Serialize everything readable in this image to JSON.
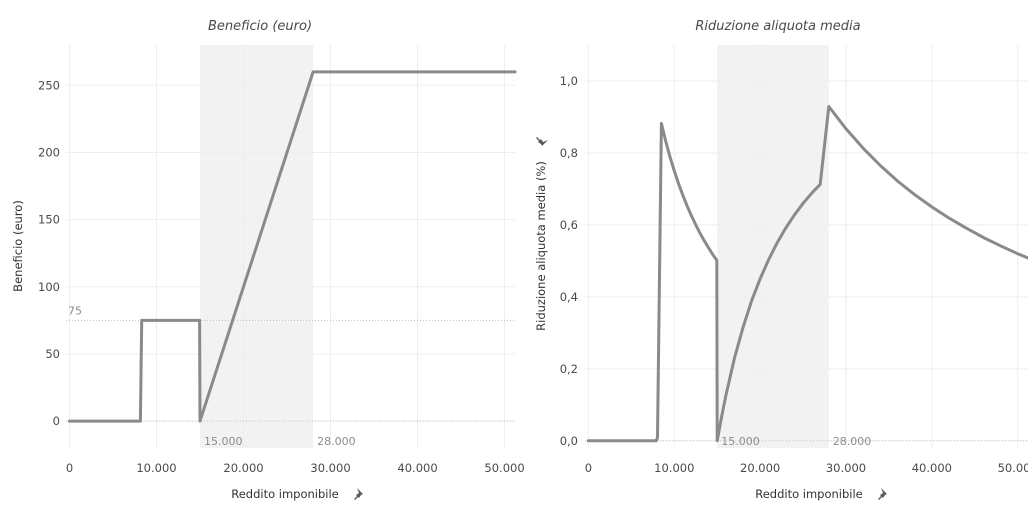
{
  "chart_data": [
    {
      "type": "line",
      "title": "Beneficio (euro)",
      "xlabel": "Reddito imponibile",
      "ylabel": "Beneficio (euro)",
      "xlim": [
        -400,
        51200
      ],
      "ylim": [
        -20,
        280
      ],
      "x_ticks": [
        {
          "v": 0,
          "label": "0"
        },
        {
          "v": 10000,
          "label": "10.000"
        },
        {
          "v": 20000,
          "label": "20.000"
        },
        {
          "v": 30000,
          "label": "30.000"
        },
        {
          "v": 40000,
          "label": "40.000"
        },
        {
          "v": 50000,
          "label": "50.000"
        }
      ],
      "y_ticks": [
        {
          "v": 0,
          "label": "0"
        },
        {
          "v": 50,
          "label": "50"
        },
        {
          "v": 100,
          "label": "100"
        },
        {
          "v": 150,
          "label": "150"
        },
        {
          "v": 200,
          "label": "200"
        },
        {
          "v": 250,
          "label": "250"
        }
      ],
      "band": [
        15000,
        28000
      ],
      "band_labels": [
        "15.000",
        "28.000"
      ],
      "ref_line": {
        "value": 75,
        "label": "75"
      },
      "series": [
        {
          "color": "#8a8a8a",
          "x": [
            0,
            8150,
            8300,
            14950,
            15000,
            28000,
            51200
          ],
          "y": [
            0,
            0,
            75,
            75,
            0,
            260,
            260
          ]
        }
      ]
    },
    {
      "type": "line",
      "title": "Riduzione aliquota media",
      "xlabel": "Reddito imponibile",
      "ylabel": "Riduzione aliquota media (%)",
      "xlim": [
        -400,
        51200
      ],
      "ylim": [
        -0.02,
        1.1
      ],
      "x_ticks": [
        {
          "v": 0,
          "label": "0"
        },
        {
          "v": 10000,
          "label": "10.000"
        },
        {
          "v": 20000,
          "label": "20.000"
        },
        {
          "v": 30000,
          "label": "30.000"
        },
        {
          "v": 40000,
          "label": "40.000"
        },
        {
          "v": 50000,
          "label": "50.000"
        }
      ],
      "y_ticks": [
        {
          "v": 0,
          "label": "0,0"
        },
        {
          "v": 0.2,
          "label": "0,2"
        },
        {
          "v": 0.4,
          "label": "0,4"
        },
        {
          "v": 0.6,
          "label": "0,6"
        },
        {
          "v": 0.8,
          "label": "0,8"
        },
        {
          "v": 1.0,
          "label": "1,0"
        }
      ],
      "band": [
        15000,
        28000
      ],
      "band_labels": [
        "15.000",
        "28.000"
      ],
      "series": [
        {
          "color": "#8a8a8a",
          "x": [
            0,
            7900,
            8050,
            8500,
            9000,
            9500,
            10000,
            10500,
            11000,
            11500,
            12000,
            12500,
            13000,
            13500,
            14000,
            14500,
            14950,
            15000,
            15500,
            16000,
            17000,
            18000,
            19000,
            20000,
            21000,
            22000,
            23000,
            24000,
            25000,
            26000,
            27000,
            28000,
            30000,
            32000,
            34000,
            36000,
            38000,
            40000,
            42000,
            44000,
            46000,
            48000,
            50000,
            51200
          ],
          "y": [
            0,
            0,
            0.01,
            0.882,
            0.833,
            0.789,
            0.75,
            0.714,
            0.682,
            0.652,
            0.625,
            0.6,
            0.577,
            0.556,
            0.536,
            0.517,
            0.502,
            0.0,
            0.065,
            0.125,
            0.229,
            0.315,
            0.389,
            0.45,
            0.504,
            0.551,
            0.592,
            0.628,
            0.66,
            0.688,
            0.713,
            0.929,
            0.867,
            0.813,
            0.765,
            0.722,
            0.684,
            0.65,
            0.619,
            0.591,
            0.565,
            0.542,
            0.52,
            0.508
          ]
        }
      ]
    }
  ],
  "icons": {
    "pin": "pin-icon"
  }
}
